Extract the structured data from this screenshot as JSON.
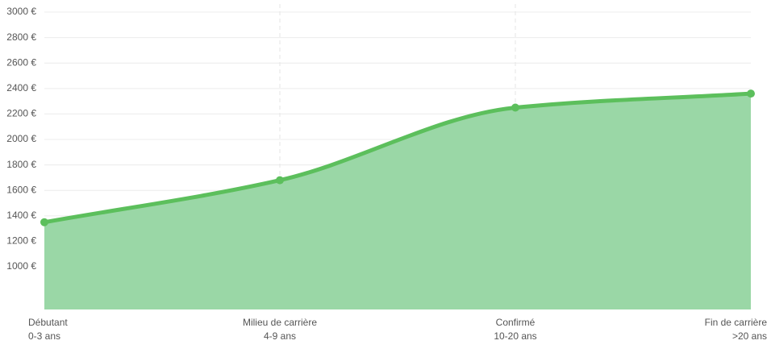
{
  "chart_data": {
    "type": "area",
    "categories": [
      "Débutant",
      "Milieu de carrière",
      "Confirmé",
      "Fin de carrière"
    ],
    "category_sublabels": [
      "0-3 ans",
      "4-9 ans",
      "10-20 ans",
      ">20 ans"
    ],
    "values": [
      1350,
      1680,
      2250,
      2360
    ],
    "color": "#5cbf5c",
    "fill_color": "#9ad7a6",
    "ylim": [
      665,
      3000
    ],
    "yticks": [
      {
        "value": 1000,
        "label": "1000 €"
      },
      {
        "value": 1200,
        "label": "1200 €"
      },
      {
        "value": 1400,
        "label": "1400 €"
      },
      {
        "value": 1600,
        "label": "1600 €"
      },
      {
        "value": 1800,
        "label": "1800 €"
      },
      {
        "value": 2000,
        "label": "2000 €"
      },
      {
        "value": 2200,
        "label": "2200 €"
      },
      {
        "value": 2400,
        "label": "2400 €"
      },
      {
        "value": 2600,
        "label": "2600 €"
      },
      {
        "value": 2800,
        "label": "2800 €"
      },
      {
        "value": 3000,
        "label": "3000 €"
      }
    ],
    "grid": true
  }
}
